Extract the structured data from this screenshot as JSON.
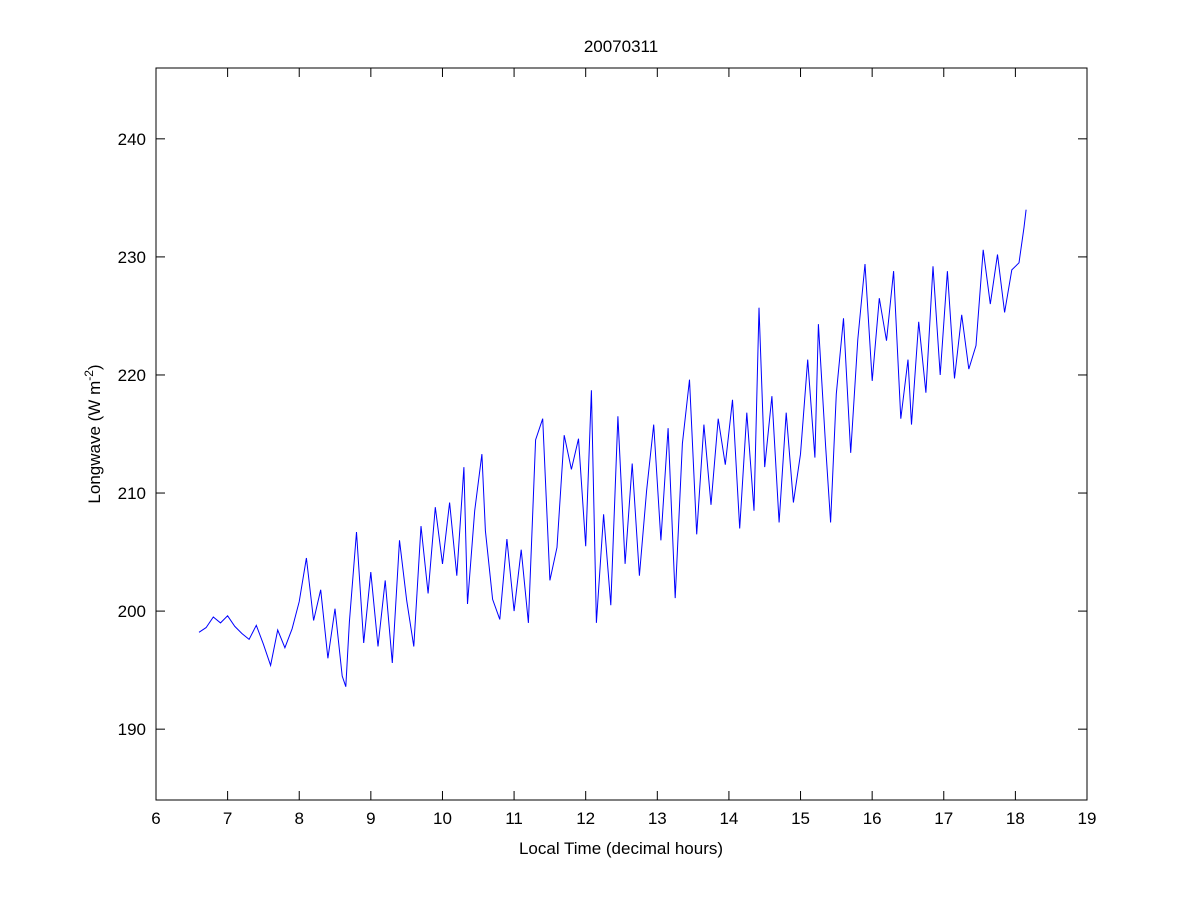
{
  "chart_data": {
    "type": "line",
    "title": "20070311",
    "xlabel": "Local Time (decimal hours)",
    "ylabel_main": "Longwave (W m",
    "ylabel_sup": "-2",
    "ylabel_close": ")",
    "xlim": [
      6,
      19
    ],
    "ylim": [
      184,
      246
    ],
    "xticks": [
      6,
      7,
      8,
      9,
      10,
      11,
      12,
      13,
      14,
      15,
      16,
      17,
      18,
      19
    ],
    "yticks": [
      190,
      200,
      210,
      220,
      230,
      240
    ],
    "grid": false,
    "line_color": "#0000ff",
    "series": [
      {
        "x": [
          6.6,
          6.7,
          6.8,
          6.9,
          7.0,
          7.1,
          7.2,
          7.3,
          7.4,
          7.5,
          7.6,
          7.7,
          7.8,
          7.9,
          8.0,
          8.1,
          8.2,
          8.3,
          8.4,
          8.5,
          8.6,
          8.65,
          8.7,
          8.8,
          8.9,
          9.0,
          9.1,
          9.2,
          9.3,
          9.4,
          9.5,
          9.6,
          9.7,
          9.8,
          9.9,
          10.0,
          10.1,
          10.2,
          10.3,
          10.35,
          10.45,
          10.55,
          10.6,
          10.7,
          10.8,
          10.9,
          11.0,
          11.1,
          11.2,
          11.3,
          11.4,
          11.5,
          11.6,
          11.7,
          11.8,
          11.9,
          12.0,
          12.08,
          12.15,
          12.25,
          12.35,
          12.45,
          12.55,
          12.65,
          12.75,
          12.85,
          12.95,
          13.05,
          13.15,
          13.25,
          13.35,
          13.45,
          13.55,
          13.65,
          13.75,
          13.85,
          13.95,
          14.05,
          14.15,
          14.25,
          14.35,
          14.42,
          14.5,
          14.6,
          14.7,
          14.8,
          14.9,
          15.0,
          15.1,
          15.2,
          15.25,
          15.35,
          15.42,
          15.5,
          15.6,
          15.7,
          15.8,
          15.9,
          16.0,
          16.1,
          16.2,
          16.3,
          16.4,
          16.5,
          16.55,
          16.65,
          16.75,
          16.85,
          16.95,
          17.05,
          17.15,
          17.25,
          17.35,
          17.45,
          17.55,
          17.65,
          17.75,
          17.85,
          17.95,
          18.05,
          18.12,
          18.15
        ],
        "y": [
          198.2,
          198.6,
          199.5,
          199.0,
          199.6,
          198.7,
          198.1,
          197.6,
          198.8,
          197.2,
          195.4,
          198.4,
          196.9,
          198.5,
          200.8,
          204.5,
          199.2,
          201.8,
          196.0,
          200.2,
          194.5,
          193.6,
          199.1,
          206.7,
          197.3,
          203.3,
          197.0,
          202.6,
          195.6,
          206.0,
          200.9,
          197.0,
          207.2,
          201.5,
          208.8,
          204.0,
          209.2,
          203.0,
          212.2,
          200.6,
          208.5,
          213.3,
          206.8,
          201.0,
          199.3,
          206.1,
          200.0,
          205.2,
          199.0,
          214.5,
          216.3,
          202.6,
          205.4,
          214.9,
          212.0,
          214.6,
          205.5,
          218.7,
          199.0,
          208.2,
          200.5,
          216.5,
          204.0,
          212.5,
          203.0,
          210.2,
          215.8,
          206.0,
          215.5,
          201.1,
          214.2,
          219.6,
          206.5,
          215.8,
          209.0,
          216.3,
          212.4,
          217.9,
          207.0,
          216.8,
          208.5,
          225.7,
          212.2,
          218.2,
          207.5,
          216.8,
          209.2,
          213.3,
          221.3,
          213.0,
          224.3,
          214.0,
          207.5,
          218.4,
          224.8,
          213.4,
          223.0,
          229.4,
          219.5,
          226.5,
          222.9,
          228.8,
          216.3,
          221.3,
          215.8,
          224.5,
          218.5,
          229.2,
          220.0,
          228.8,
          219.7,
          225.1,
          220.5,
          222.5,
          230.6,
          226.0,
          230.2,
          225.3,
          228.9,
          229.5,
          232.5,
          234.0
        ]
      }
    ]
  }
}
